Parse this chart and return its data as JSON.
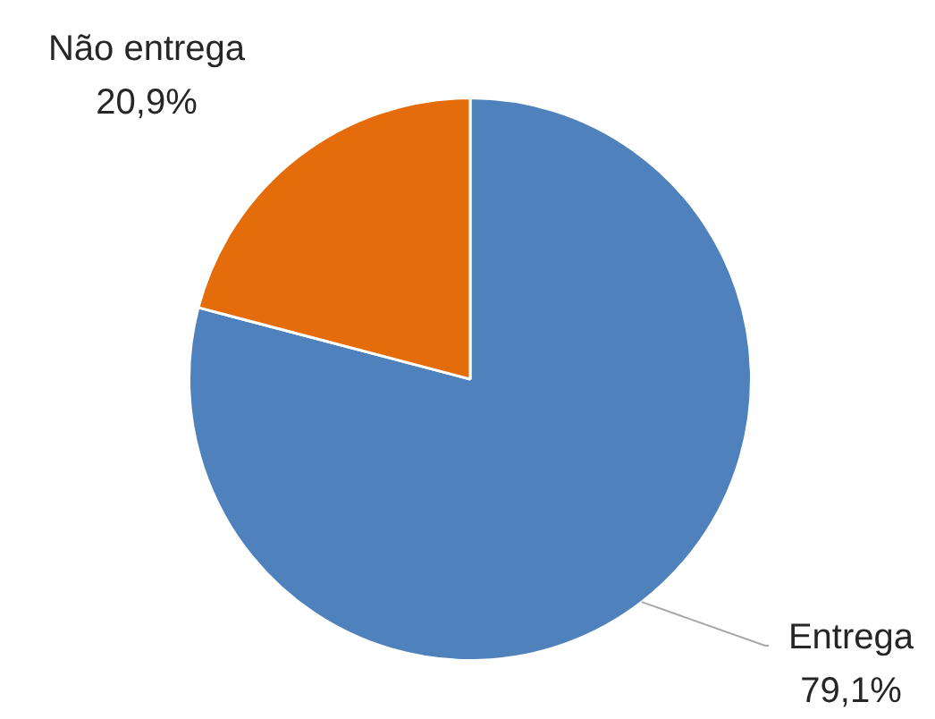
{
  "chart_data": {
    "type": "pie",
    "categories": [
      "Entrega",
      "Não entrega"
    ],
    "values": [
      79.1,
      20.9
    ],
    "colors": [
      "#4f81bd",
      "#e46c0a"
    ],
    "value_labels": [
      "79,1%",
      "20,9%"
    ],
    "legend": false
  }
}
